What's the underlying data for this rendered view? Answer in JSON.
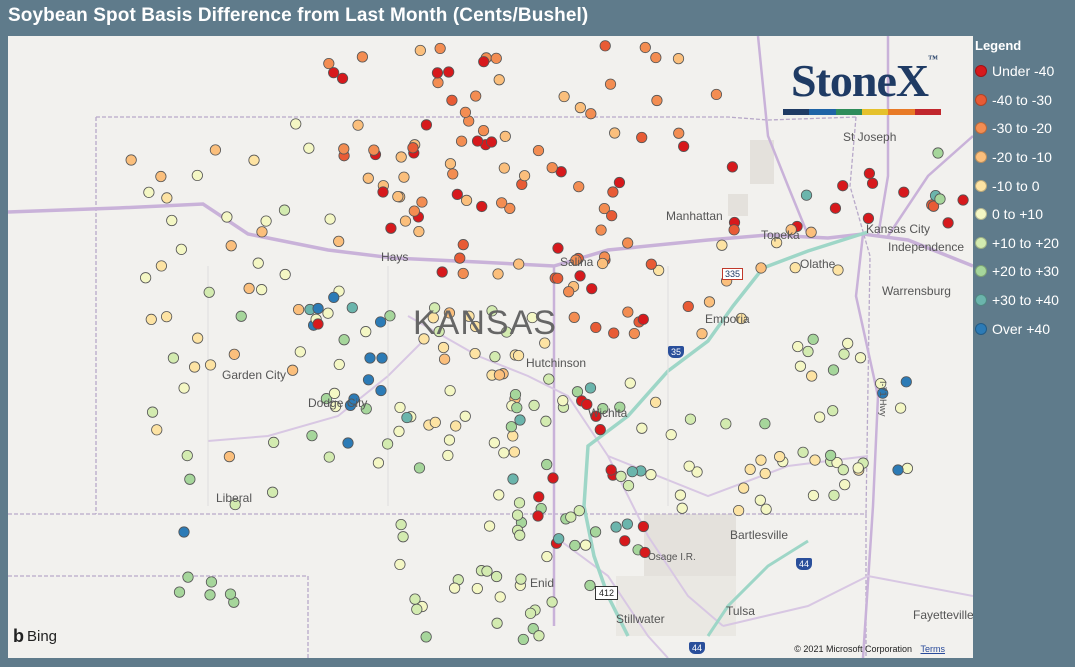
{
  "title": "Soybean Spot Basis Difference from Last Month (Cents/Bushel)",
  "legend": {
    "title": "Legend",
    "items": [
      {
        "label": "Under -40",
        "color": "#d7191c"
      },
      {
        "label": "-40 to -30",
        "color": "#e85b35"
      },
      {
        "label": "-30 to -20",
        "color": "#f38d52"
      },
      {
        "label": "-20 to -10",
        "color": "#fbbf7c"
      },
      {
        "label": "-10 to 0",
        "color": "#fde3a3"
      },
      {
        "label": "0 to +10",
        "color": "#f4f7c4"
      },
      {
        "label": "+10 to +20",
        "color": "#d3ebb0"
      },
      {
        "label": "+20 to +30",
        "color": "#a6d69b"
      },
      {
        "label": "+30 to +40",
        "color": "#6bb5ac"
      },
      {
        "label": "Over +40",
        "color": "#2c7bb6"
      }
    ]
  },
  "logo": {
    "text": "StoneX",
    "tm": "™"
  },
  "map": {
    "state_label": "KANSAS",
    "places": [
      "St Joseph",
      "Manhattan",
      "Kansas City",
      "Independence",
      "Hays",
      "Salina",
      "Topeka",
      "Olathe",
      "Warrensburg",
      "Emporia",
      "Garden City",
      "Dodge City",
      "Hutchinson",
      "Wichita",
      "Liberal",
      "Bartlesville",
      "Osage I.R.",
      "Enid",
      "Tulsa",
      "Stillwater",
      "Fayetteville"
    ],
    "highways": [
      "335",
      "35",
      "412",
      "44",
      "44"
    ],
    "road_label": "I-71 Hwy",
    "attribution": "Bing",
    "copyright": "© 2021 Microsoft Corporation",
    "terms": "Terms"
  },
  "chart_data": {
    "type": "scatter",
    "title": "Soybean Spot Basis Difference from Last Month (Cents/Bushel)",
    "legend_placement": "right",
    "bins": [
      "Under -40",
      "-40 to -30",
      "-30 to -20",
      "-20 to -10",
      "-10 to 0",
      "0 to +10",
      "+10 to +20",
      "+20 to +30",
      "+30 to +40",
      "Over +40"
    ],
    "points": [
      {
        "lon": 9,
        "lat": 24,
        "bin": 2
      },
      {
        "lon": 18,
        "lat": 26,
        "bin": 0
      },
      {
        "lon": 25,
        "lat": 26,
        "bin": 1
      },
      {
        "lon": 37,
        "lat": 28,
        "bin": 3
      },
      {
        "lon": 42,
        "lat": 28,
        "bin": 1
      },
      {
        "lon": 16,
        "lat": 42,
        "bin": 1
      },
      {
        "lon": 24,
        "lat": 43,
        "bin": 3
      },
      {
        "lon": 29,
        "lat": 40,
        "bin": 1
      },
      {
        "lon": 35,
        "lat": 39,
        "bin": 3
      },
      {
        "lon": 40,
        "lat": 41,
        "bin": 2
      },
      {
        "lon": 45,
        "lat": 39,
        "bin": 2
      },
      {
        "lon": 41,
        "lat": 48,
        "bin": 0
      },
      {
        "lon": 47,
        "lat": 48,
        "bin": 1
      },
      {
        "lon": 52,
        "lat": 47,
        "bin": 3
      },
      {
        "lon": 60,
        "lat": 41,
        "bin": 3
      },
      {
        "lon": 66,
        "lat": 40,
        "bin": 2
      },
      {
        "lon": 63,
        "lat": 45,
        "bin": 0
      },
      {
        "lon": 70,
        "lat": 44,
        "bin": 0
      },
      {
        "lon": 26,
        "lat": 59,
        "bin": 5
      },
      {
        "lon": 43,
        "lat": 69,
        "bin": 5
      },
      {
        "lon": 64,
        "lat": 67,
        "bin": 1
      },
      {
        "lon": 71,
        "lat": 69,
        "bin": 0
      },
      {
        "lon": 69,
        "lat": 73,
        "bin": 3
      },
      {
        "lon": 84,
        "lat": 74,
        "bin": 0
      },
      {
        "lon": 87,
        "lat": 79,
        "bin": 0
      },
      {
        "lon": 91,
        "lat": 80,
        "bin": 2
      },
      {
        "lon": 85,
        "lat": 66,
        "bin": 0
      },
      {
        "lon": 77,
        "lat": 75,
        "bin": 1
      },
      {
        "lon": 92,
        "lat": 63,
        "bin": 2
      },
      {
        "lon": 96,
        "lat": 59,
        "bin": 0
      },
      {
        "lon": 47,
        "lat": 76,
        "bin": 0
      },
      {
        "lon": 48,
        "lat": 84,
        "bin": 3
      },
      {
        "lon": 56,
        "lat": 77,
        "bin": 3
      },
      {
        "lon": 59,
        "lat": 82,
        "bin": 2
      },
      {
        "lon": 62,
        "lat": 79,
        "bin": 2
      },
      {
        "lon": 68,
        "lat": 82,
        "bin": 2
      },
      {
        "lon": 62,
        "lat": 88,
        "bin": 2
      },
      {
        "lon": 74,
        "lat": 84,
        "bin": 3
      },
      {
        "lon": 82,
        "lat": 82,
        "bin": 3
      },
      {
        "lon": 93,
        "lat": 86,
        "bin": 0
      },
      {
        "lon": 100,
        "lat": 80,
        "bin": 3
      },
      {
        "lon": 73,
        "lat": 93,
        "bin": 4
      },
      {
        "lon": 78,
        "lat": 91,
        "bin": 3
      },
      {
        "lon": 83,
        "lat": 96,
        "bin": 3
      },
      {
        "lon": 90,
        "lat": 93,
        "bin": 4
      },
      {
        "lon": 98,
        "lat": 101,
        "bin": 4
      },
      {
        "lon": 69,
        "lat": 101,
        "bin": 0
      },
      {
        "lon": 18,
        "lat": 102,
        "bin": 3
      },
      {
        "lon": 26,
        "lat": 105,
        "bin": 4
      },
      {
        "lon": 35,
        "lat": 102,
        "bin": 4
      },
      {
        "lon": 42,
        "lat": 104,
        "bin": 4
      },
      {
        "lon": 52,
        "lat": 106,
        "bin": 5
      },
      {
        "lon": 61,
        "lat": 106,
        "bin": 5
      },
      {
        "lon": 70,
        "lat": 109,
        "bin": 5
      },
      {
        "lon": 81,
        "lat": 105,
        "bin": 6
      },
      {
        "lon": 91,
        "lat": 112,
        "bin": 5
      },
      {
        "lon": 101,
        "lat": 104,
        "bin": 0
      },
      {
        "lon": 98,
        "lat": 113,
        "bin": 3
      },
      {
        "lon": 109,
        "lat": 113,
        "bin": 5
      },
      {
        "lon": 121,
        "lat": 112,
        "bin": 3
      },
      {
        "lon": 129,
        "lat": 109,
        "bin": 5
      },
      {
        "lon": 138,
        "lat": 110,
        "bin": 4
      },
      {
        "lon": 141,
        "lat": 116,
        "bin": 3
      },
      {
        "lon": 151,
        "lat": 111,
        "bin": 3
      },
      {
        "lon": 158,
        "lat": 115,
        "bin": 2
      },
      {
        "lon": 170,
        "lat": 111,
        "bin": 3
      },
      {
        "lon": 178,
        "lat": 107,
        "bin": 0
      },
      {
        "lon": 186,
        "lat": 114,
        "bin": 3
      },
      {
        "lon": 196,
        "lat": 112,
        "bin": 2
      },
      {
        "lon": 205,
        "lat": 108,
        "bin": 4
      },
      {
        "lon": 216,
        "lat": 112,
        "bin": 2
      },
      {
        "lon": 225,
        "lat": 114,
        "bin": 3
      },
      {
        "lon": 232,
        "lat": 109,
        "bin": 2
      },
      {
        "lon": 238,
        "lat": 113,
        "bin": 3
      },
      {
        "lon": 244,
        "lat": 115,
        "bin": 2
      }
    ]
  }
}
